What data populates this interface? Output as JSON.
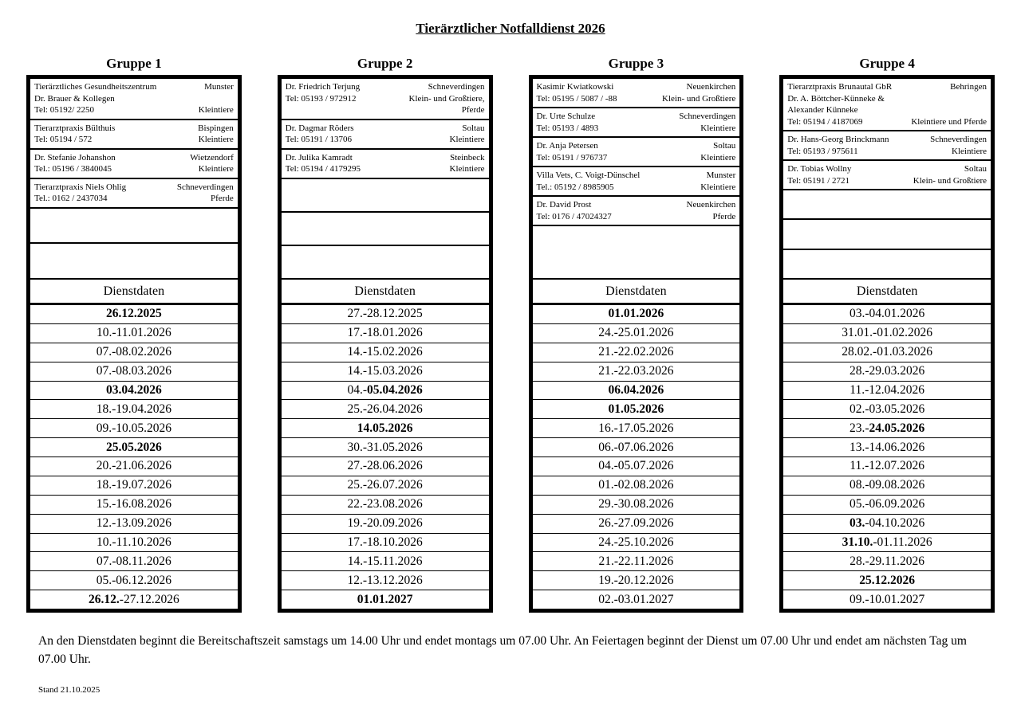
{
  "title": "Tierärztlicher Notfalldienst 2026",
  "dienstdaten_label": "Dienstdaten",
  "footer": {
    "note": "An den Dienstdaten beginnt die Bereitschaftszeit samstags um 14.00 Uhr und endet montags um 07.00 Uhr. An Feiertagen beginnt der Dienst um 07.00 Uhr und endet am nächsten Tag um 07.00 Uhr.",
    "stand": "Stand 21.10.2025"
  },
  "groups": [
    {
      "name": "Gruppe 1",
      "empty_rows": 2,
      "practices": [
        {
          "left": [
            "Tierärztliches Gesundheitszentrum",
            "Dr. Brauer & Kollegen",
            "Tel: 05192/ 2250"
          ],
          "right": [
            "Munster",
            "",
            "Kleintiere"
          ]
        },
        {
          "left": [
            "Tierarztpraxis Bülthuis",
            "Tel: 05194 / 572"
          ],
          "right": [
            "Bispingen",
            "Kleintiere"
          ]
        },
        {
          "left": [
            "Dr. Stefanie Johanshon",
            "Tel.: 05196 / 3840045"
          ],
          "right": [
            "Wietzendorf",
            "Kleintiere"
          ]
        },
        {
          "left": [
            "Tierarztpraxis Niels Ohlig",
            "Tel.: 0162 / 2437034"
          ],
          "right": [
            "Schneverdingen",
            "Pferde"
          ]
        }
      ],
      "dates": [
        [
          {
            "t": "26.12.2025",
            "b": true
          }
        ],
        [
          {
            "t": "10.-11.01.2026",
            "b": false
          }
        ],
        [
          {
            "t": "07.-08.02.2026",
            "b": false
          }
        ],
        [
          {
            "t": "07.-08.03.2026",
            "b": false
          }
        ],
        [
          {
            "t": "03.04.2026",
            "b": true
          }
        ],
        [
          {
            "t": "18.-19.04.2026",
            "b": false
          }
        ],
        [
          {
            "t": "09.-10.05.2026",
            "b": false
          }
        ],
        [
          {
            "t": "25.05.2026",
            "b": true
          }
        ],
        [
          {
            "t": "20.-21.06.2026",
            "b": false
          }
        ],
        [
          {
            "t": "18.-19.07.2026",
            "b": false
          }
        ],
        [
          {
            "t": "15.-16.08.2026",
            "b": false
          }
        ],
        [
          {
            "t": "12.-13.09.2026",
            "b": false
          }
        ],
        [
          {
            "t": "10.-11.10.2026",
            "b": false
          }
        ],
        [
          {
            "t": "07.-08.11.2026",
            "b": false
          }
        ],
        [
          {
            "t": "05.-06.12.2026",
            "b": false
          }
        ],
        [
          {
            "t": "26.12.",
            "b": true
          },
          {
            "t": "-27.12.2026",
            "b": false
          }
        ]
      ]
    },
    {
      "name": "Gruppe 2",
      "empty_rows": 3,
      "practices": [
        {
          "left": [
            "Dr. Friedrich Terjung",
            "Tel: 05193 / 972912"
          ],
          "right": [
            "Schneverdingen",
            "Klein- und Großtiere,",
            "Pferde"
          ]
        },
        {
          "left": [
            "Dr. Dagmar Röders",
            "Tel: 05191 / 13706"
          ],
          "right": [
            "Soltau",
            "Kleintiere"
          ]
        },
        {
          "left": [
            "Dr. Julika Kamradt",
            "Tel: 05194 / 4179295"
          ],
          "right": [
            "Steinbeck",
            "Kleintiere"
          ]
        }
      ],
      "dates": [
        [
          {
            "t": "27.-28.12.2025",
            "b": false
          }
        ],
        [
          {
            "t": "17.-18.01.2026",
            "b": false
          }
        ],
        [
          {
            "t": "14.-15.02.2026",
            "b": false
          }
        ],
        [
          {
            "t": "14.-15.03.2026",
            "b": false
          }
        ],
        [
          {
            "t": "04.-",
            "b": false
          },
          {
            "t": "05.04.2026",
            "b": true
          }
        ],
        [
          {
            "t": "25.-26.04.2026",
            "b": false
          }
        ],
        [
          {
            "t": "14.05.2026",
            "b": true
          }
        ],
        [
          {
            "t": "30.-31.05.2026",
            "b": false
          }
        ],
        [
          {
            "t": "27.-28.06.2026",
            "b": false
          }
        ],
        [
          {
            "t": "25.-26.07.2026",
            "b": false
          }
        ],
        [
          {
            "t": "22.-23.08.2026",
            "b": false
          }
        ],
        [
          {
            "t": "19.-20.09.2026",
            "b": false
          }
        ],
        [
          {
            "t": "17.-18.10.2026",
            "b": false
          }
        ],
        [
          {
            "t": "14.-15.11.2026",
            "b": false
          }
        ],
        [
          {
            "t": "12.-13.12.2026",
            "b": false
          }
        ],
        [
          {
            "t": "01.01.2027",
            "b": true
          }
        ]
      ]
    },
    {
      "name": "Gruppe 3",
      "empty_rows": 1,
      "practices": [
        {
          "left": [
            "Kasimir Kwiatkowski",
            "Tel: 05195 / 5087 / -88"
          ],
          "right": [
            "Neuenkirchen",
            "Klein- und Großtiere"
          ]
        },
        {
          "left": [
            "Dr. Urte Schulze",
            "Tel: 05193 / 4893"
          ],
          "right": [
            "Schneverdingen",
            "Kleintiere"
          ]
        },
        {
          "left": [
            "Dr. Anja Petersen",
            "Tel: 05191 / 976737"
          ],
          "right": [
            "Soltau",
            "Kleintiere"
          ]
        },
        {
          "left": [
            "Villa Vets, C. Voigt-Dünschel",
            "Tel.: 05192 / 8985905"
          ],
          "right": [
            "Munster",
            "Kleintiere"
          ]
        },
        {
          "left": [
            "Dr. David Prost",
            "Tel: 0176 / 47024327"
          ],
          "right": [
            "Neuenkirchen",
            "Pferde"
          ]
        }
      ],
      "dates": [
        [
          {
            "t": "01.01.2026",
            "b": true
          }
        ],
        [
          {
            "t": "24.-25.01.2026",
            "b": false
          }
        ],
        [
          {
            "t": "21.-22.02.2026",
            "b": false
          }
        ],
        [
          {
            "t": "21.-22.03.2026",
            "b": false
          }
        ],
        [
          {
            "t": "06.04.2026",
            "b": true
          }
        ],
        [
          {
            "t": "01.05.2026",
            "b": true
          }
        ],
        [
          {
            "t": "16.-17.05.2026",
            "b": false
          }
        ],
        [
          {
            "t": "06.-07.06.2026",
            "b": false
          }
        ],
        [
          {
            "t": "04.-05.07.2026",
            "b": false
          }
        ],
        [
          {
            "t": "01.-02.08.2026",
            "b": false
          }
        ],
        [
          {
            "t": "29.-30.08.2026",
            "b": false
          }
        ],
        [
          {
            "t": "26.-27.09.2026",
            "b": false
          }
        ],
        [
          {
            "t": "24.-25.10.2026",
            "b": false
          }
        ],
        [
          {
            "t": "21.-22.11.2026",
            "b": false
          }
        ],
        [
          {
            "t": "19.-20.12.2026",
            "b": false
          }
        ],
        [
          {
            "t": "02.-03.01.2027",
            "b": false
          }
        ]
      ]
    },
    {
      "name": "Gruppe 4",
      "empty_rows": 3,
      "practices": [
        {
          "left": [
            "Tierarztpraxis Brunautal GbR",
            "Dr. A. Böttcher-Künneke &",
            "Alexander Künneke",
            "Tel: 05194 / 4187069"
          ],
          "right": [
            "Behringen",
            "",
            "",
            "Kleintiere und Pferde"
          ]
        },
        {
          "left": [
            "Dr. Hans-Georg Brinckmann",
            "Tel: 05193 / 975611"
          ],
          "right": [
            "Schneverdingen",
            "Kleintiere"
          ]
        },
        {
          "left": [
            "Dr. Tobias Wollny",
            "Tel: 05191 / 2721"
          ],
          "right": [
            "Soltau",
            "Klein- und Großtiere"
          ]
        }
      ],
      "dates": [
        [
          {
            "t": "03.-04.01.2026",
            "b": false
          }
        ],
        [
          {
            "t": "31.01.-01.02.2026",
            "b": false
          }
        ],
        [
          {
            "t": "28.02.-01.03.2026",
            "b": false
          }
        ],
        [
          {
            "t": "28.-29.03.2026",
            "b": false
          }
        ],
        [
          {
            "t": "11.-12.04.2026",
            "b": false
          }
        ],
        [
          {
            "t": "02.-03.05.2026",
            "b": false
          }
        ],
        [
          {
            "t": "23.-",
            "b": false
          },
          {
            "t": "24.05.2026",
            "b": true
          }
        ],
        [
          {
            "t": "13.-14.06.2026",
            "b": false
          }
        ],
        [
          {
            "t": "11.-12.07.2026",
            "b": false
          }
        ],
        [
          {
            "t": "08.-09.08.2026",
            "b": false
          }
        ],
        [
          {
            "t": "05.-06.09.2026",
            "b": false
          }
        ],
        [
          {
            "t": "03.",
            "b": true
          },
          {
            "t": "-04.10.2026",
            "b": false
          }
        ],
        [
          {
            "t": "31.10.",
            "b": true
          },
          {
            "t": "-01.11.2026",
            "b": false
          }
        ],
        [
          {
            "t": "28.-29.11.2026",
            "b": false
          }
        ],
        [
          {
            "t": "25.12.2026",
            "b": true
          }
        ],
        [
          {
            "t": "09.-10.01.2027",
            "b": false
          }
        ]
      ]
    }
  ]
}
